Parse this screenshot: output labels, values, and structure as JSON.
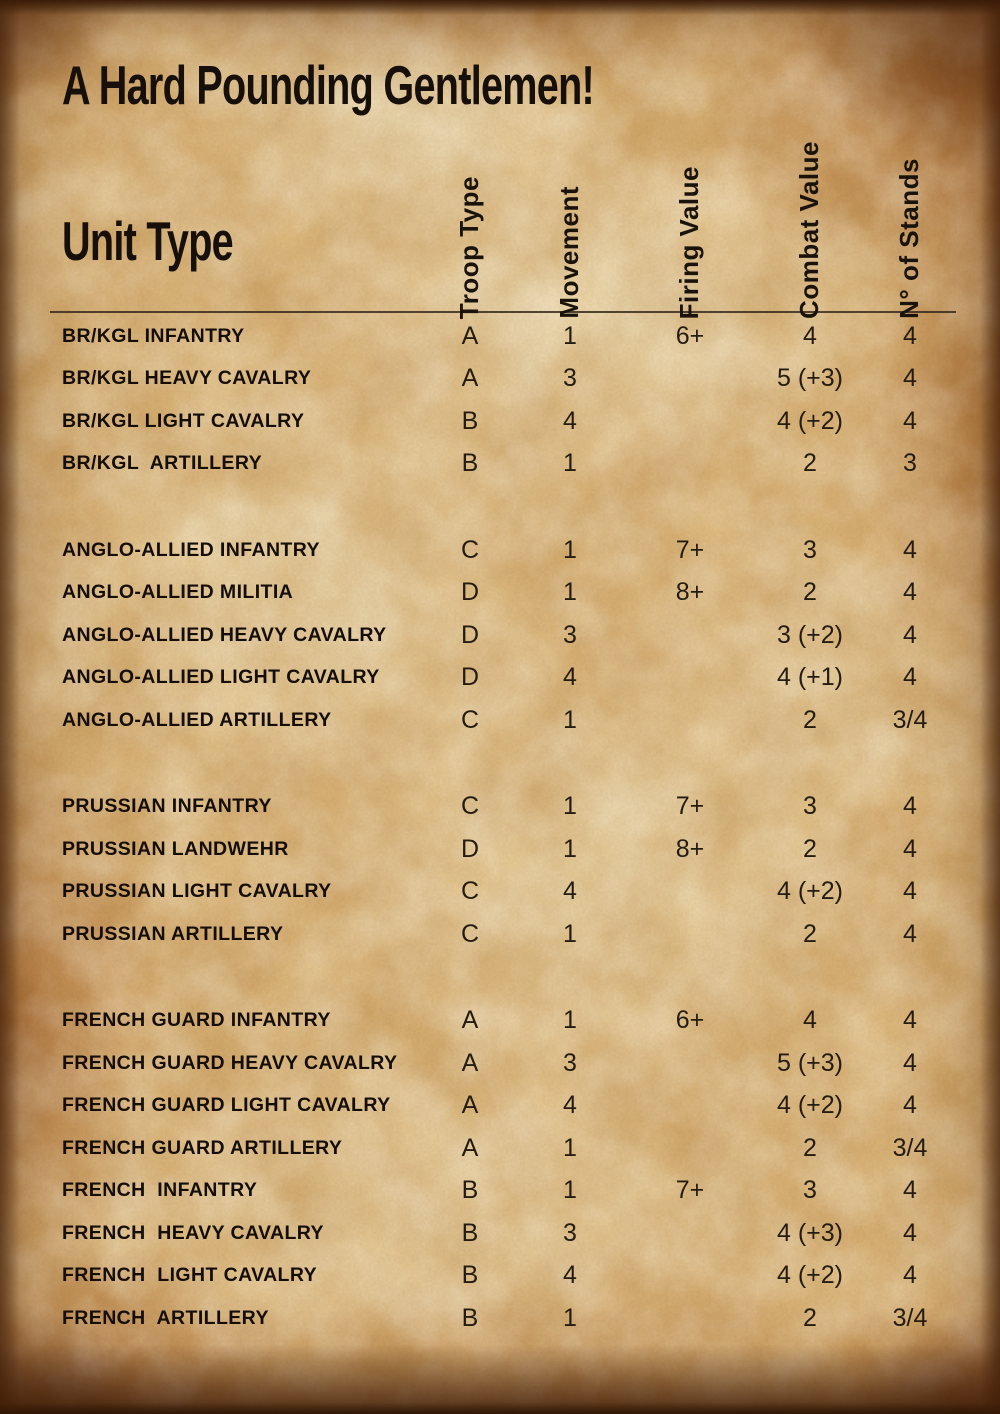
{
  "title": "A Hard Pounding Gentlemen!",
  "table": {
    "row_header": "Unit Type",
    "columns": [
      "Troop Type",
      "Movement",
      "Firing Value",
      "Combat Value",
      "N° of Stands"
    ],
    "groups": [
      {
        "name": "br-kgl",
        "rows": [
          {
            "unit": "BR/KGL INFANTRY",
            "troop_type": "A",
            "movement": "1",
            "firing_value": "6+",
            "combat_value": "4",
            "stands": "4"
          },
          {
            "unit": "BR/KGL HEAVY CAVALRY",
            "troop_type": "A",
            "movement": "3",
            "firing_value": "",
            "combat_value": "5 (+3)",
            "stands": "4"
          },
          {
            "unit": "BR/KGL LIGHT CAVALRY",
            "troop_type": "B",
            "movement": "4",
            "firing_value": "",
            "combat_value": "4 (+2)",
            "stands": "4"
          },
          {
            "unit": "BR/KGL  ARTILLERY",
            "troop_type": "B",
            "movement": "1",
            "firing_value": "",
            "combat_value": "2",
            "stands": "3"
          }
        ]
      },
      {
        "name": "anglo-allied",
        "rows": [
          {
            "unit": "ANGLO-ALLIED INFANTRY",
            "troop_type": "C",
            "movement": "1",
            "firing_value": "7+",
            "combat_value": "3",
            "stands": "4"
          },
          {
            "unit": "ANGLO-ALLIED MILITIA",
            "troop_type": "D",
            "movement": "1",
            "firing_value": "8+",
            "combat_value": "2",
            "stands": "4"
          },
          {
            "unit": "ANGLO-ALLIED HEAVY CAVALRY",
            "troop_type": "D",
            "movement": "3",
            "firing_value": "",
            "combat_value": "3 (+2)",
            "stands": "4"
          },
          {
            "unit": "ANGLO-ALLIED LIGHT CAVALRY",
            "troop_type": "D",
            "movement": "4",
            "firing_value": "",
            "combat_value": "4 (+1)",
            "stands": "4"
          },
          {
            "unit": "ANGLO-ALLIED ARTILLERY",
            "troop_type": "C",
            "movement": "1",
            "firing_value": "",
            "combat_value": "2",
            "stands": "3/4"
          }
        ]
      },
      {
        "name": "prussian",
        "rows": [
          {
            "unit": "PRUSSIAN INFANTRY",
            "troop_type": "C",
            "movement": "1",
            "firing_value": "7+",
            "combat_value": "3",
            "stands": "4"
          },
          {
            "unit": "PRUSSIAN LANDWEHR",
            "troop_type": "D",
            "movement": "1",
            "firing_value": "8+",
            "combat_value": "2",
            "stands": "4"
          },
          {
            "unit": "PRUSSIAN LIGHT CAVALRY",
            "troop_type": "C",
            "movement": "4",
            "firing_value": "",
            "combat_value": "4 (+2)",
            "stands": "4"
          },
          {
            "unit": "PRUSSIAN ARTILLERY",
            "troop_type": "C",
            "movement": "1",
            "firing_value": "",
            "combat_value": "2",
            "stands": "4"
          }
        ]
      },
      {
        "name": "french",
        "rows": [
          {
            "unit": "FRENCH GUARD INFANTRY",
            "troop_type": "A",
            "movement": "1",
            "firing_value": "6+",
            "combat_value": "4",
            "stands": "4"
          },
          {
            "unit": "FRENCH GUARD HEAVY CAVALRY",
            "troop_type": "A",
            "movement": "3",
            "firing_value": "",
            "combat_value": "5 (+3)",
            "stands": "4"
          },
          {
            "unit": "FRENCH GUARD LIGHT CAVALRY",
            "troop_type": "A",
            "movement": "4",
            "firing_value": "",
            "combat_value": "4 (+2)",
            "stands": "4"
          },
          {
            "unit": "FRENCH GUARD ARTILLERY",
            "troop_type": "A",
            "movement": "1",
            "firing_value": "",
            "combat_value": "2",
            "stands": "3/4"
          },
          {
            "unit": "FRENCH  INFANTRY",
            "troop_type": "B",
            "movement": "1",
            "firing_value": "7+",
            "combat_value": "3",
            "stands": "4"
          },
          {
            "unit": "FRENCH  HEAVY CAVALRY",
            "troop_type": "B",
            "movement": "3",
            "firing_value": "",
            "combat_value": "4 (+3)",
            "stands": "4"
          },
          {
            "unit": "FRENCH  LIGHT CAVALRY",
            "troop_type": "B",
            "movement": "4",
            "firing_value": "",
            "combat_value": "4 (+2)",
            "stands": "4"
          },
          {
            "unit": "FRENCH  ARTILLERY",
            "troop_type": "B",
            "movement": "1",
            "firing_value": "",
            "combat_value": "2",
            "stands": "3/4"
          }
        ]
      }
    ]
  },
  "colors": {
    "ink": "#17100a",
    "parchment_mid": "#e0bd83",
    "parchment_light": "#f6ead0",
    "parchment_burn": "#96500f",
    "edge_dark": "#1c0c04",
    "rule": "#372a1c"
  }
}
